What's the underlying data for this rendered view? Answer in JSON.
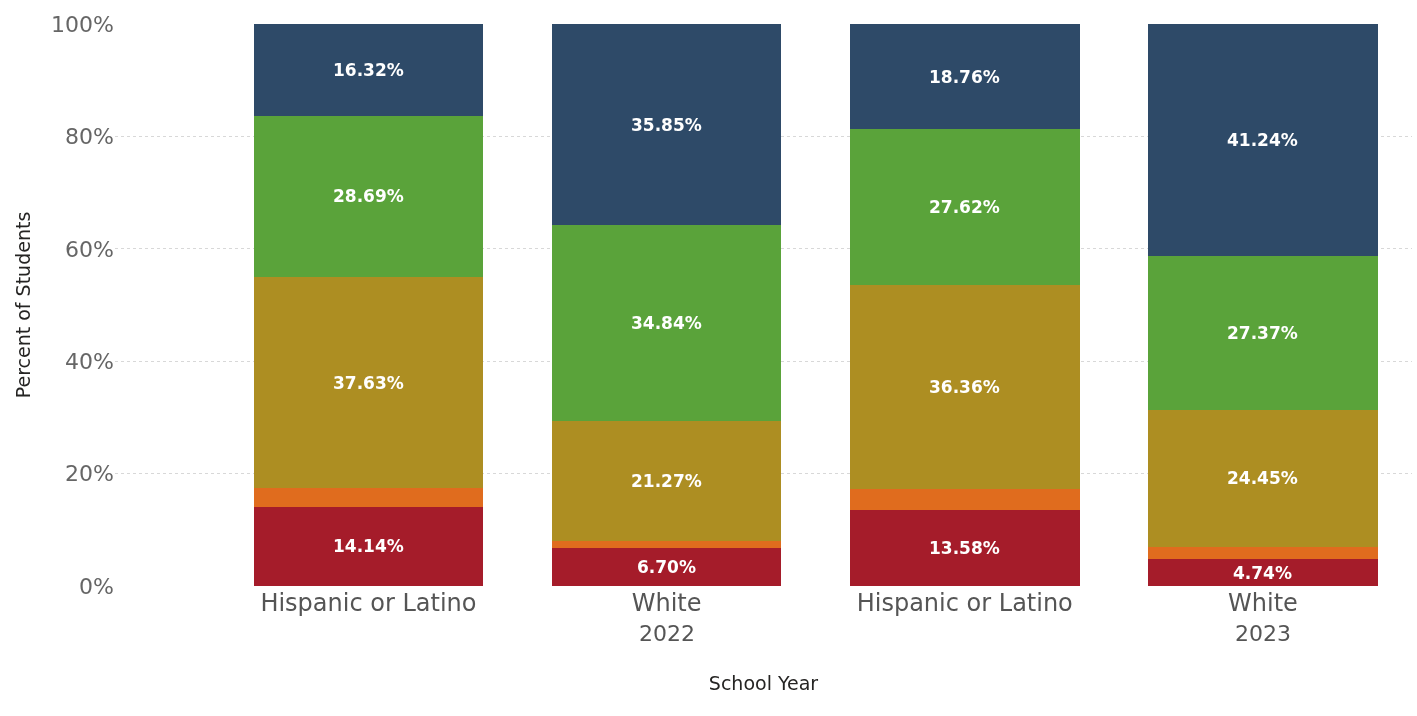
{
  "chart_data": {
    "type": "bar",
    "stacked": true,
    "xlabel": "School Year",
    "ylabel": "Percent of Students",
    "categories": [
      "Hispanic or Latino",
      "White",
      "Hispanic or Latino",
      "White"
    ],
    "annotations": [
      "2022",
      "2023"
    ],
    "series": [
      {
        "color": "#a51c2a",
        "values": [
          14.14,
          6.7,
          13.58,
          4.74
        ],
        "value_labels": [
          "14.14%",
          "6.70%",
          "13.58%",
          "4.74%"
        ]
      },
      {
        "color": "#e06c1e",
        "values": [
          3.22,
          1.34,
          3.68,
          2.2
        ],
        "value_labels": [
          null,
          null,
          null,
          null
        ]
      },
      {
        "color": "#ad8e22",
        "values": [
          37.63,
          21.27,
          36.36,
          24.45
        ],
        "value_labels": [
          "37.63%",
          "21.27%",
          "36.36%",
          "24.45%"
        ]
      },
      {
        "color": "#5aa33a",
        "values": [
          28.69,
          34.84,
          27.62,
          27.37
        ],
        "value_labels": [
          "28.69%",
          "34.84%",
          "27.62%",
          "27.37%"
        ]
      },
      {
        "color": "#2e4a68",
        "values": [
          16.32,
          35.85,
          18.76,
          41.24
        ],
        "value_labels": [
          "16.32%",
          "35.85%",
          "18.76%",
          "41.24%"
        ]
      }
    ],
    "ylim": [
      0,
      100
    ],
    "yticks": [
      {
        "value": 0,
        "label": "0%"
      },
      {
        "value": 20,
        "label": "20%"
      },
      {
        "value": 40,
        "label": "40%"
      },
      {
        "value": 60,
        "label": "60%"
      },
      {
        "value": 80,
        "label": "80%"
      },
      {
        "value": 100,
        "label": "100%"
      }
    ],
    "grid": "y"
  }
}
